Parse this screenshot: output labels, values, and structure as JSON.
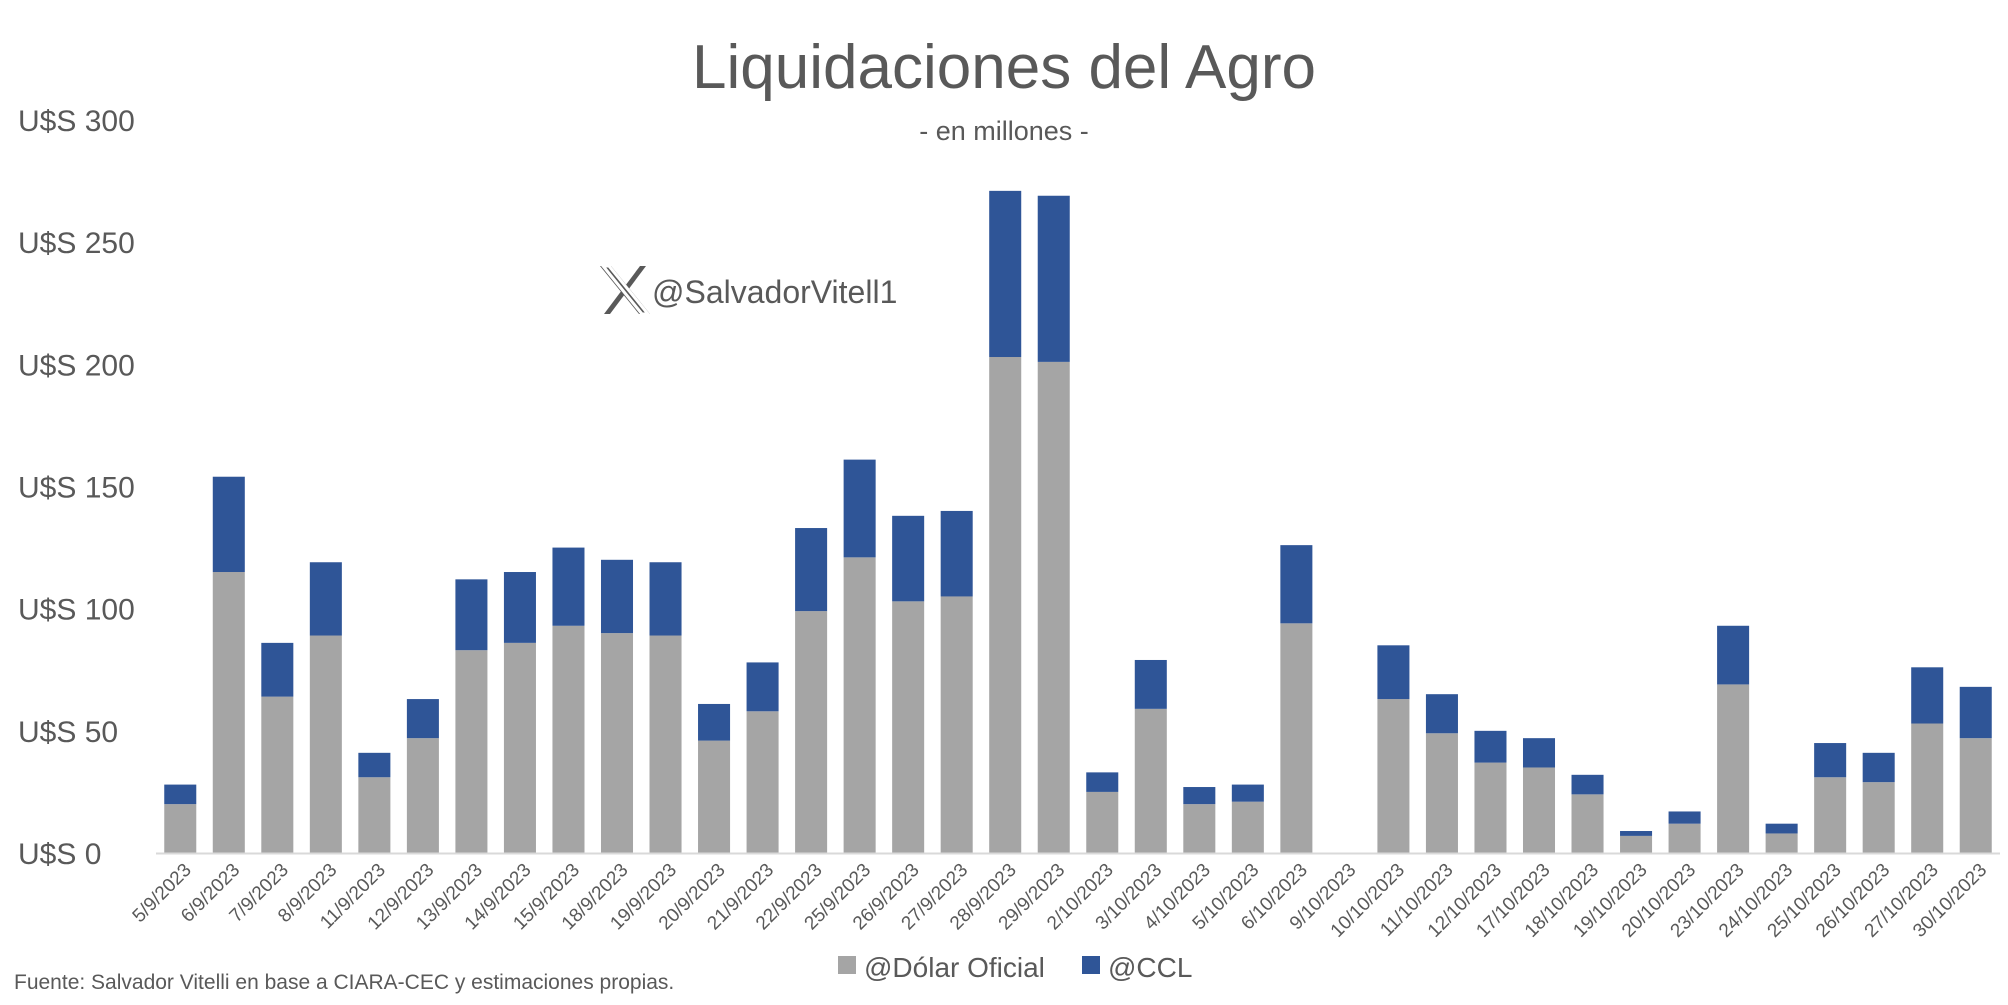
{
  "watermark": {
    "handle": "@SalvadorVitell1",
    "icon": "x-logo-icon"
  },
  "source_note": "Fuente: Salvador Vitelli en base a CIARA-CEC y estimaciones propias.",
  "colors": {
    "oficial": "#A5A5A5",
    "ccl": "#2F5597",
    "text": "#595959",
    "axis": "#D9D9D9"
  },
  "chart_data": {
    "type": "bar",
    "stacked": true,
    "title": "Liquidaciones del Agro",
    "subtitle": "- en millones -",
    "y_tick_labels": [
      "U$S 0",
      "U$S 50",
      "U$S 100",
      "U$S 150",
      "U$S 200",
      "U$S 250",
      "U$S 300"
    ],
    "ylim": [
      0,
      300
    ],
    "grid": false,
    "legend_position": "bottom",
    "categories": [
      "5/9/2023",
      "6/9/2023",
      "7/9/2023",
      "8/9/2023",
      "11/9/2023",
      "12/9/2023",
      "13/9/2023",
      "14/9/2023",
      "15/9/2023",
      "18/9/2023",
      "19/9/2023",
      "20/9/2023",
      "21/9/2023",
      "22/9/2023",
      "25/9/2023",
      "26/9/2023",
      "27/9/2023",
      "28/9/2023",
      "29/9/2023",
      "2/10/2023",
      "3/10/2023",
      "4/10/2023",
      "5/10/2023",
      "6/10/2023",
      "9/10/2023",
      "10/10/2023",
      "11/10/2023",
      "12/10/2023",
      "17/10/2023",
      "18/10/2023",
      "19/10/2023",
      "20/10/2023",
      "23/10/2023",
      "24/10/2023",
      "25/10/2023",
      "26/10/2023",
      "27/10/2023",
      "30/10/2023"
    ],
    "series": [
      {
        "name": "@Dólar Oficial",
        "values": [
          20,
          115,
          64,
          89,
          31,
          47,
          83,
          86,
          93,
          90,
          89,
          46,
          58,
          99,
          121,
          103,
          105,
          203,
          201,
          25,
          59,
          20,
          21,
          94,
          0,
          63,
          49,
          37,
          35,
          24,
          7,
          12,
          69,
          8,
          31,
          29,
          53,
          47
        ]
      },
      {
        "name": "@CCL",
        "values": [
          8,
          39,
          22,
          30,
          10,
          16,
          29,
          29,
          32,
          30,
          30,
          15,
          20,
          34,
          40,
          35,
          35,
          68,
          68,
          8,
          20,
          7,
          7,
          32,
          0,
          22,
          16,
          13,
          12,
          8,
          2,
          5,
          24,
          4,
          14,
          12,
          23,
          21
        ]
      }
    ]
  }
}
